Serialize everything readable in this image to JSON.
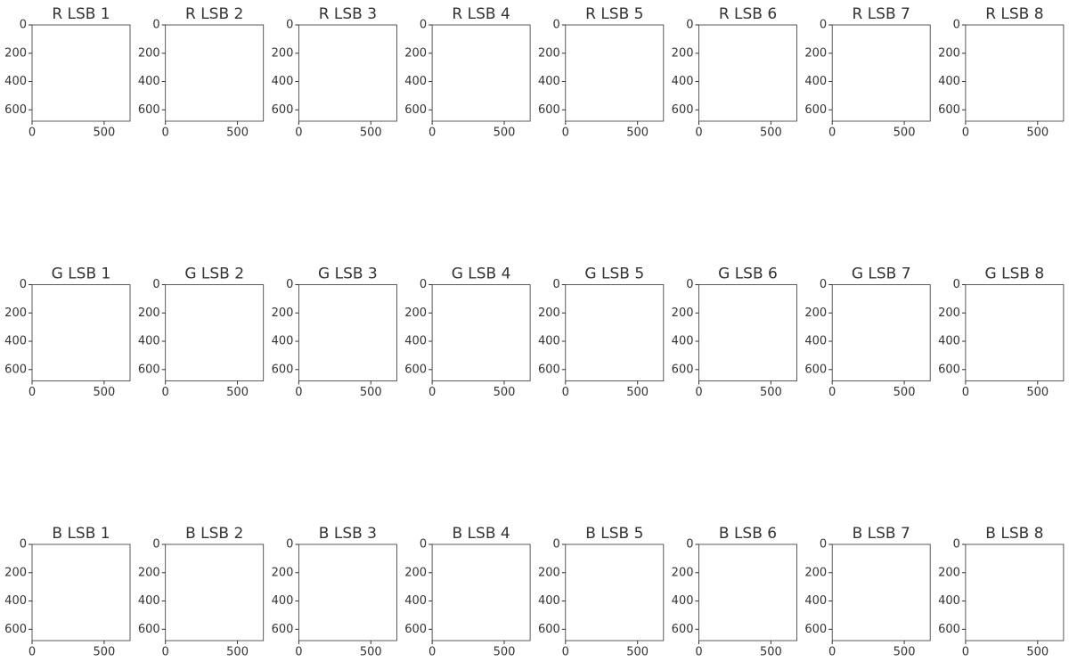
{
  "chart_data": [
    {
      "type": "image",
      "title": "R LSB 1",
      "xlim": [
        0,
        680
      ],
      "ylim": [
        680,
        0
      ],
      "xticks": [
        0,
        500
      ],
      "yticks": [
        0,
        200,
        400,
        600
      ]
    },
    {
      "type": "image",
      "title": "R LSB 2",
      "xlim": [
        0,
        680
      ],
      "ylim": [
        680,
        0
      ],
      "xticks": [
        0,
        500
      ],
      "yticks": [
        0,
        200,
        400,
        600
      ]
    },
    {
      "type": "image",
      "title": "R LSB 3",
      "xlim": [
        0,
        680
      ],
      "ylim": [
        680,
        0
      ],
      "xticks": [
        0,
        500
      ],
      "yticks": [
        0,
        200,
        400,
        600
      ]
    },
    {
      "type": "image",
      "title": "R LSB 4",
      "xlim": [
        0,
        680
      ],
      "ylim": [
        680,
        0
      ],
      "xticks": [
        0,
        500
      ],
      "yticks": [
        0,
        200,
        400,
        600
      ]
    },
    {
      "type": "image",
      "title": "R LSB 5",
      "xlim": [
        0,
        680
      ],
      "ylim": [
        680,
        0
      ],
      "xticks": [
        0,
        500
      ],
      "yticks": [
        0,
        200,
        400,
        600
      ]
    },
    {
      "type": "image",
      "title": "R LSB 6",
      "xlim": [
        0,
        680
      ],
      "ylim": [
        680,
        0
      ],
      "xticks": [
        0,
        500
      ],
      "yticks": [
        0,
        200,
        400,
        600
      ]
    },
    {
      "type": "image",
      "title": "R LSB 7",
      "xlim": [
        0,
        680
      ],
      "ylim": [
        680,
        0
      ],
      "xticks": [
        0,
        500
      ],
      "yticks": [
        0,
        200,
        400,
        600
      ]
    },
    {
      "type": "image",
      "title": "R LSB 8",
      "xlim": [
        0,
        680
      ],
      "ylim": [
        680,
        0
      ],
      "xticks": [
        0,
        500
      ],
      "yticks": [
        0,
        200,
        400,
        600
      ]
    },
    {
      "type": "image",
      "title": "G LSB 1",
      "xlim": [
        0,
        680
      ],
      "ylim": [
        680,
        0
      ],
      "xticks": [
        0,
        500
      ],
      "yticks": [
        0,
        200,
        400,
        600
      ]
    },
    {
      "type": "image",
      "title": "G LSB 2",
      "xlim": [
        0,
        680
      ],
      "ylim": [
        680,
        0
      ],
      "xticks": [
        0,
        500
      ],
      "yticks": [
        0,
        200,
        400,
        600
      ]
    },
    {
      "type": "image",
      "title": "G LSB 3",
      "xlim": [
        0,
        680
      ],
      "ylim": [
        680,
        0
      ],
      "xticks": [
        0,
        500
      ],
      "yticks": [
        0,
        200,
        400,
        600
      ]
    },
    {
      "type": "image",
      "title": "G LSB 4",
      "xlim": [
        0,
        680
      ],
      "ylim": [
        680,
        0
      ],
      "xticks": [
        0,
        500
      ],
      "yticks": [
        0,
        200,
        400,
        600
      ]
    },
    {
      "type": "image",
      "title": "G LSB 5",
      "xlim": [
        0,
        680
      ],
      "ylim": [
        680,
        0
      ],
      "xticks": [
        0,
        500
      ],
      "yticks": [
        0,
        200,
        400,
        600
      ]
    },
    {
      "type": "image",
      "title": "G LSB 6",
      "xlim": [
        0,
        680
      ],
      "ylim": [
        680,
        0
      ],
      "xticks": [
        0,
        500
      ],
      "yticks": [
        0,
        200,
        400,
        600
      ]
    },
    {
      "type": "image",
      "title": "G LSB 7",
      "xlim": [
        0,
        680
      ],
      "ylim": [
        680,
        0
      ],
      "xticks": [
        0,
        500
      ],
      "yticks": [
        0,
        200,
        400,
        600
      ]
    },
    {
      "type": "image",
      "title": "G LSB 8",
      "xlim": [
        0,
        680
      ],
      "ylim": [
        680,
        0
      ],
      "xticks": [
        0,
        500
      ],
      "yticks": [
        0,
        200,
        400,
        600
      ]
    },
    {
      "type": "image",
      "title": "B LSB 1",
      "xlim": [
        0,
        680
      ],
      "ylim": [
        680,
        0
      ],
      "xticks": [
        0,
        500
      ],
      "yticks": [
        0,
        200,
        400,
        600
      ]
    },
    {
      "type": "image",
      "title": "B LSB 2",
      "xlim": [
        0,
        680
      ],
      "ylim": [
        680,
        0
      ],
      "xticks": [
        0,
        500
      ],
      "yticks": [
        0,
        200,
        400,
        600
      ]
    },
    {
      "type": "image",
      "title": "B LSB 3",
      "xlim": [
        0,
        680
      ],
      "ylim": [
        680,
        0
      ],
      "xticks": [
        0,
        500
      ],
      "yticks": [
        0,
        200,
        400,
        600
      ]
    },
    {
      "type": "image",
      "title": "B LSB 4",
      "xlim": [
        0,
        680
      ],
      "ylim": [
        680,
        0
      ],
      "xticks": [
        0,
        500
      ],
      "yticks": [
        0,
        200,
        400,
        600
      ]
    },
    {
      "type": "image",
      "title": "B LSB 5",
      "xlim": [
        0,
        680
      ],
      "ylim": [
        680,
        0
      ],
      "xticks": [
        0,
        500
      ],
      "yticks": [
        0,
        200,
        400,
        600
      ]
    },
    {
      "type": "image",
      "title": "B LSB 6",
      "xlim": [
        0,
        680
      ],
      "ylim": [
        680,
        0
      ],
      "xticks": [
        0,
        500
      ],
      "yticks": [
        0,
        200,
        400,
        600
      ]
    },
    {
      "type": "image",
      "title": "B LSB 7",
      "xlim": [
        0,
        680
      ],
      "ylim": [
        680,
        0
      ],
      "xticks": [
        0,
        500
      ],
      "yticks": [
        0,
        200,
        400,
        600
      ]
    },
    {
      "type": "image",
      "title": "B LSB 8",
      "xlim": [
        0,
        680
      ],
      "ylim": [
        680,
        0
      ],
      "xticks": [
        0,
        500
      ],
      "yticks": [
        0,
        200,
        400,
        600
      ]
    }
  ]
}
